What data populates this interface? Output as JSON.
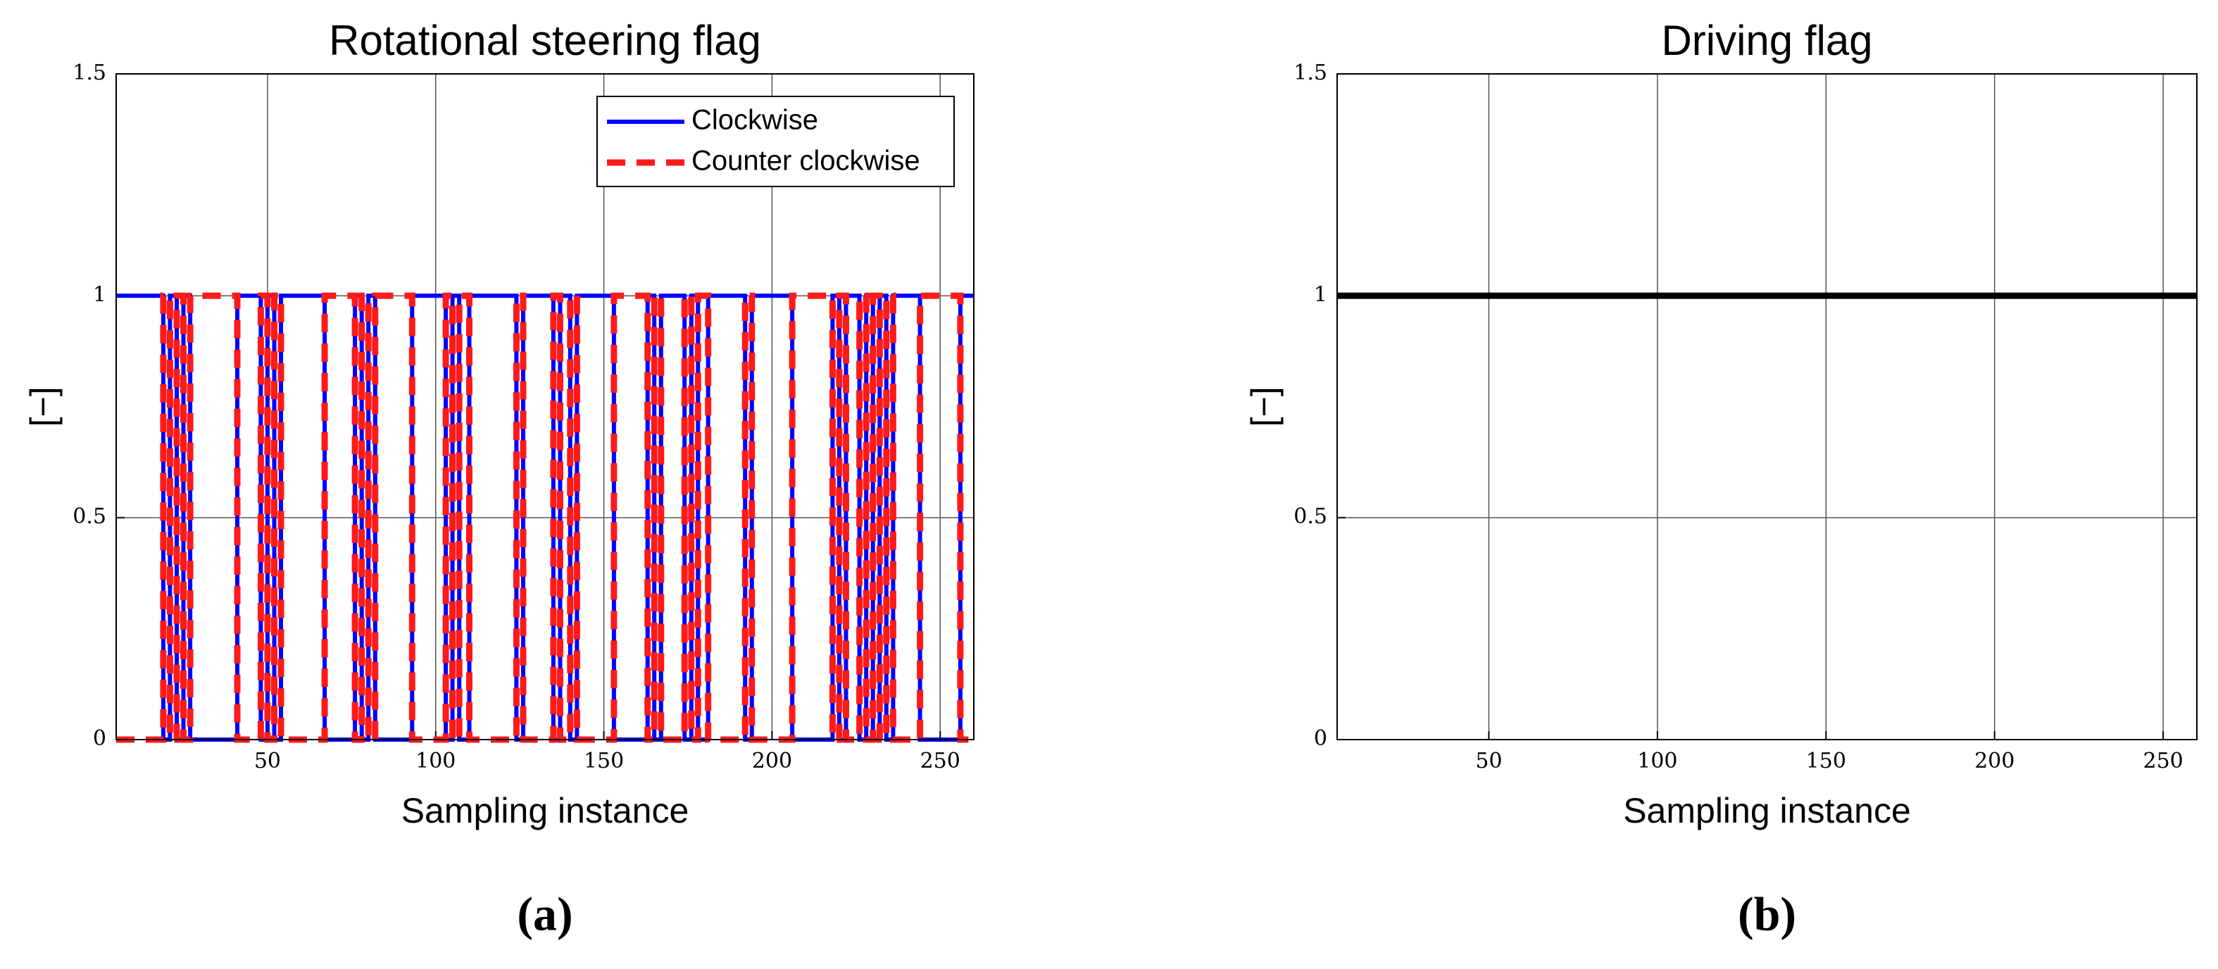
{
  "chart_data": [
    {
      "type": "line",
      "title": "Rotational steering flag",
      "x_label": "Sampling instance",
      "y_label": "[−]",
      "caption": "(a)",
      "xlim": [
        5,
        260
      ],
      "xticks": [
        50,
        100,
        150,
        200,
        250
      ],
      "ylim": [
        0,
        1.5
      ],
      "yticks": [
        0,
        0.5,
        1,
        1.5
      ],
      "grid": true,
      "legend": "upper right",
      "x": [
        5,
        19,
        19,
        21,
        21,
        23,
        23,
        25,
        25,
        27,
        27,
        41,
        41,
        48,
        48,
        50,
        50,
        52,
        52,
        54,
        54,
        67,
        67,
        76,
        76,
        78,
        78,
        80,
        80,
        82,
        82,
        93,
        93,
        103,
        103,
        105,
        105,
        107,
        107,
        110,
        110,
        124,
        124,
        126,
        126,
        135,
        135,
        137,
        137,
        140,
        140,
        142,
        142,
        153,
        153,
        163,
        163,
        165,
        165,
        167,
        167,
        174,
        174,
        176,
        176,
        178,
        178,
        181,
        181,
        192,
        192,
        194,
        194,
        206,
        206,
        218,
        218,
        220,
        220,
        222,
        222,
        226,
        226,
        228,
        228,
        230,
        230,
        232,
        232,
        234,
        234,
        236,
        236,
        244,
        244,
        256,
        256,
        260
      ],
      "series": [
        {
          "name": "Clockwise",
          "color": "#0000ff",
          "linestyle": "solid",
          "values": [
            1,
            1,
            0,
            0,
            1,
            1,
            0,
            0,
            1,
            1,
            0,
            0,
            1,
            1,
            0,
            0,
            1,
            1,
            0,
            0,
            1,
            1,
            0,
            0,
            1,
            1,
            0,
            0,
            1,
            1,
            0,
            0,
            1,
            1,
            0,
            0,
            1,
            1,
            0,
            0,
            1,
            1,
            0,
            0,
            1,
            1,
            0,
            0,
            1,
            1,
            0,
            0,
            1,
            1,
            0,
            0,
            1,
            1,
            0,
            0,
            1,
            1,
            0,
            0,
            1,
            1,
            0,
            0,
            1,
            1,
            0,
            0,
            1,
            1,
            0,
            0,
            1,
            1,
            0,
            0,
            1,
            1,
            0,
            0,
            1,
            1,
            0,
            0,
            1,
            1,
            0,
            0,
            1,
            1,
            0,
            0,
            1,
            1
          ]
        },
        {
          "name": "Counter clockwise",
          "color": "#ff1a1a",
          "linestyle": "dashed",
          "values": [
            0,
            0,
            1,
            1,
            0,
            0,
            1,
            1,
            0,
            0,
            1,
            1,
            0,
            0,
            1,
            1,
            0,
            0,
            1,
            1,
            0,
            0,
            1,
            1,
            0,
            0,
            1,
            1,
            0,
            0,
            1,
            1,
            0,
            0,
            1,
            1,
            0,
            0,
            1,
            1,
            0,
            0,
            1,
            1,
            0,
            0,
            1,
            1,
            0,
            0,
            1,
            1,
            0,
            0,
            1,
            1,
            0,
            0,
            1,
            1,
            0,
            0,
            1,
            1,
            0,
            0,
            1,
            1,
            0,
            0,
            1,
            1,
            0,
            0,
            1,
            1,
            0,
            0,
            1,
            1,
            0,
            0,
            1,
            1,
            0,
            0,
            1,
            1,
            0,
            0,
            1,
            1,
            0,
            0,
            1,
            1,
            0,
            0
          ]
        }
      ]
    },
    {
      "type": "line",
      "title": "Driving flag",
      "x_label": "Sampling instance",
      "y_label": "[−]",
      "caption": "(b)",
      "xlim": [
        5,
        260
      ],
      "xticks": [
        50,
        100,
        150,
        200,
        250
      ],
      "ylim": [
        0,
        1.5
      ],
      "yticks": [
        0,
        0.5,
        1,
        1.5
      ],
      "grid": true,
      "x": [
        5,
        260
      ],
      "series": [
        {
          "color": "#000000",
          "linestyle": "solid",
          "values": [
            1,
            1
          ]
        }
      ]
    }
  ]
}
